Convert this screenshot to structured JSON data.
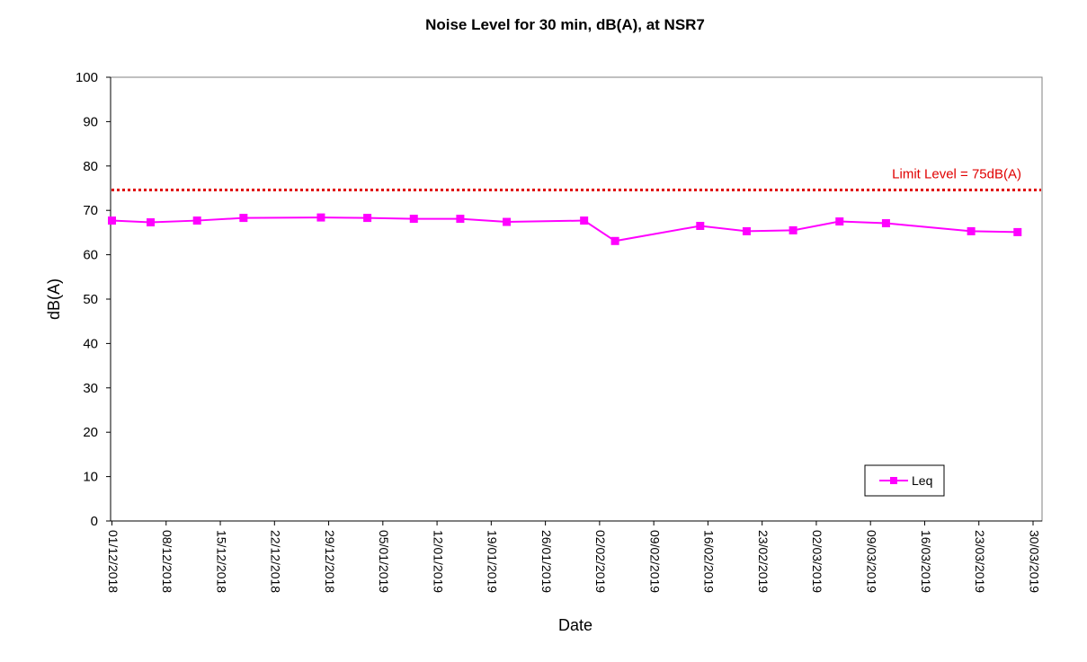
{
  "chart_data": {
    "type": "line",
    "title": "Noise Level for 30 min, dB(A), at NSR7",
    "xlabel": "Date",
    "ylabel": "dB(A)",
    "ylim": [
      0,
      100
    ],
    "yticks": [
      0,
      10,
      20,
      30,
      40,
      50,
      60,
      70,
      80,
      90,
      100
    ],
    "xlim": [
      "01/12/2018",
      "30/03/2019"
    ],
    "xticks": [
      "01/12/2018",
      "08/12/2018",
      "15/12/2018",
      "22/12/2018",
      "29/12/2018",
      "05/01/2019",
      "12/01/2019",
      "19/01/2019",
      "26/01/2019",
      "02/02/2019",
      "09/02/2019",
      "16/02/2019",
      "23/02/2019",
      "02/03/2019",
      "09/03/2019",
      "16/03/2019",
      "23/03/2019",
      "30/03/2019"
    ],
    "grid": false,
    "legend_position": "bottom-right",
    "series": [
      {
        "name": "Leq",
        "color": "#FF00FF",
        "marker": "square",
        "points": [
          {
            "x": "01/12/2018",
            "y": 67.7
          },
          {
            "x": "06/12/2018",
            "y": 67.3
          },
          {
            "x": "12/12/2018",
            "y": 67.7
          },
          {
            "x": "18/12/2018",
            "y": 68.3
          },
          {
            "x": "28/12/2018",
            "y": 68.4
          },
          {
            "x": "03/01/2019",
            "y": 68.3
          },
          {
            "x": "09/01/2019",
            "y": 68.1
          },
          {
            "x": "15/01/2019",
            "y": 68.1
          },
          {
            "x": "21/01/2019",
            "y": 67.4
          },
          {
            "x": "31/01/2019",
            "y": 67.7
          },
          {
            "x": "04/02/2019",
            "y": 63.1
          },
          {
            "x": "15/02/2019",
            "y": 66.5
          },
          {
            "x": "21/02/2019",
            "y": 65.3
          },
          {
            "x": "27/02/2019",
            "y": 65.5
          },
          {
            "x": "05/03/2019",
            "y": 67.5
          },
          {
            "x": "11/03/2019",
            "y": 67.1
          },
          {
            "x": "22/03/2019",
            "y": 65.3
          },
          {
            "x": "28/03/2019",
            "y": 65.1
          }
        ]
      }
    ],
    "reference_lines": [
      {
        "label": "Limit Level = 75dB(A)",
        "y": 74.6,
        "color": "#E00000",
        "style": "dotted"
      }
    ]
  }
}
